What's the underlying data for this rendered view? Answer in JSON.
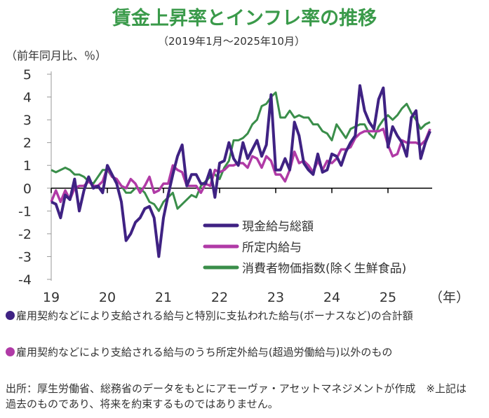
{
  "chart_data": {
    "type": "line",
    "title": "賃金上昇率とインフレ率の推移",
    "subtitle": "（2019年1月～2025年10月）",
    "ylabel": "（前年同月比、％）",
    "xlabel": "（年）",
    "ylim": [
      -4,
      5
    ],
    "yticks": [
      "5",
      "4",
      "3",
      "2",
      "1",
      "0",
      "-1",
      "-2",
      "-3",
      "-4"
    ],
    "xticks": [
      "19",
      "20",
      "21",
      "22",
      "23",
      "24",
      "25"
    ],
    "x_start": "2019-01",
    "months": 82,
    "legend_position": "lower-right",
    "series": [
      {
        "name": "現金給与総額",
        "color": "#3f2283",
        "values": [
          -0.6,
          -0.7,
          -1.3,
          -0.3,
          -0.5,
          0.4,
          -1.0,
          -0.1,
          0.5,
          0.0,
          0.1,
          -0.2,
          1.0,
          0.6,
          0.2,
          -0.6,
          -2.3,
          -2.0,
          -1.5,
          -1.3,
          -0.9,
          -0.8,
          -1.3,
          -3.0,
          -1.3,
          -0.3,
          0.6,
          1.4,
          1.9,
          0.1,
          0.6,
          0.6,
          0.2,
          0.2,
          0.8,
          -0.4,
          1.1,
          1.2,
          2.0,
          1.3,
          1.0,
          2.0,
          1.3,
          1.7,
          2.1,
          1.4,
          1.9,
          4.1,
          0.8,
          0.8,
          1.3,
          0.8,
          2.9,
          2.3,
          1.1,
          0.8,
          0.6,
          1.5,
          0.7,
          0.8,
          1.5,
          1.4,
          1.0,
          1.6,
          2.0,
          2.3,
          4.5,
          3.4,
          2.9,
          2.6,
          3.9,
          4.4,
          1.8,
          2.7,
          2.3,
          2.0,
          1.4,
          3.1,
          3.4,
          1.3,
          2.0,
          2.5
        ]
      },
      {
        "name": "所定内給与",
        "color": "#b03aa6",
        "values": [
          -0.6,
          -0.1,
          -0.6,
          -0.1,
          -0.5,
          0.0,
          0.1,
          0.1,
          0.3,
          0.1,
          0.1,
          0.3,
          0.9,
          0.5,
          0.4,
          0.1,
          0.0,
          0.4,
          0.2,
          -0.2,
          0.1,
          0.5,
          -0.2,
          -0.1,
          0.2,
          0.2,
          1.0,
          0.8,
          0.7,
          0.1,
          0.1,
          0.1,
          -0.2,
          0.2,
          0.1,
          0.8,
          0.7,
          0.8,
          1.0,
          1.0,
          1.1,
          1.1,
          0.9,
          1.4,
          1.3,
          0.9,
          1.4,
          1.2,
          0.6,
          0.6,
          0.3,
          0.8,
          1.6,
          1.1,
          1.2,
          1.0,
          0.7,
          1.2,
          0.8,
          1.2,
          1.1,
          1.3,
          1.7,
          1.7,
          1.8,
          2.2,
          2.4,
          2.5,
          2.5,
          2.5,
          2.5,
          2.6,
          1.9,
          1.4,
          1.5,
          2.1,
          2.0,
          2.0,
          2.0,
          1.9,
          2.1,
          2.6
        ]
      },
      {
        "name": "消費者物価指数(除く生鮮食品)",
        "color": "#3a8e4a",
        "values": [
          0.8,
          0.7,
          0.8,
          0.9,
          0.8,
          0.6,
          0.6,
          0.5,
          0.3,
          0.2,
          0.5,
          0.8,
          0.8,
          0.5,
          0.4,
          0.1,
          -0.2,
          -0.2,
          0.0,
          0.0,
          -0.2,
          -0.6,
          -0.7,
          -1.0,
          -0.6,
          -0.4,
          -0.2,
          -0.9,
          -0.7,
          -0.5,
          -0.3,
          -0.4,
          0.1,
          0.3,
          0.5,
          0.6,
          0.4,
          0.9,
          1.2,
          2.1,
          2.1,
          2.2,
          2.4,
          2.8,
          3.0,
          3.6,
          3.7,
          4.0,
          4.2,
          3.1,
          3.1,
          3.4,
          3.1,
          3.2,
          3.1,
          3.1,
          2.8,
          2.8,
          2.5,
          2.4,
          2.1,
          2.8,
          2.5,
          2.2,
          2.6,
          2.7,
          2.8,
          2.8,
          2.4,
          2.2,
          2.7,
          3.0,
          3.2,
          3.0,
          3.2,
          3.5,
          3.7,
          3.3,
          3.0,
          2.6,
          2.8,
          2.9
        ]
      }
    ]
  },
  "notes": {
    "note1": "雇用契約などにより支給される給与と特別に支払われた給与(ボーナスなど)の合計額",
    "note2": "雇用契約などにより支給される給与のうち所定外給与(超過労働給与)以外のもの",
    "source": "出所：厚生労働省、総務省のデータをもとにアモーヴァ・アセットマネジメントが作成　※上記は過去のものであり、将来を約束するものではありません。"
  }
}
